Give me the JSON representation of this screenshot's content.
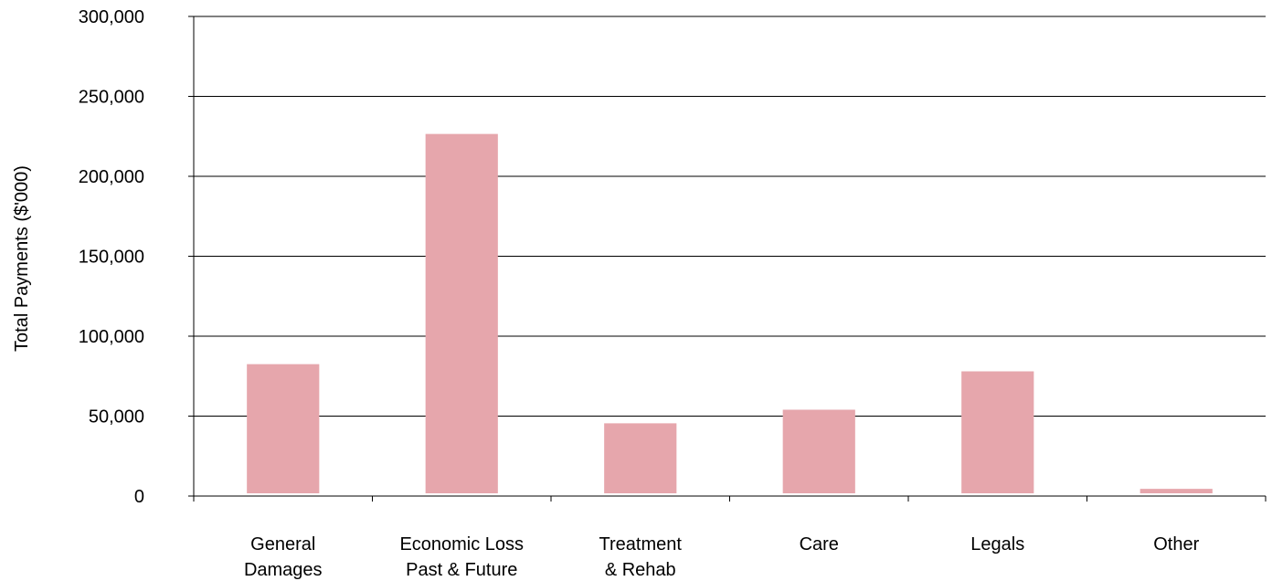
{
  "chart_data": {
    "type": "bar",
    "title": "",
    "xlabel": "",
    "ylabel": "Total Payments ($'000)",
    "ylim": [
      0,
      300000
    ],
    "yticks": [
      "0",
      "50,000",
      "100,000",
      "150,000",
      "200,000",
      "250,000",
      "300,000"
    ],
    "categories": [
      [
        "General",
        "Damages"
      ],
      [
        "Economic Loss",
        "Past & Future"
      ],
      [
        "Treatment",
        "& Rehab"
      ],
      [
        "Care"
      ],
      [
        "Legals"
      ],
      [
        "Other"
      ]
    ],
    "values": [
      82500,
      226500,
      45500,
      54000,
      78000,
      4500
    ],
    "bar_color": "#e6a6ac",
    "grid": true,
    "legend": "none"
  }
}
